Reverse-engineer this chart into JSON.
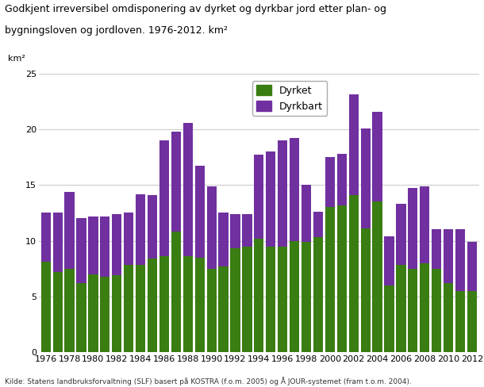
{
  "years": [
    1976,
    1977,
    1978,
    1979,
    1980,
    1981,
    1982,
    1983,
    1984,
    1985,
    1986,
    1987,
    1988,
    1989,
    1990,
    1991,
    1992,
    1993,
    1994,
    1995,
    1996,
    1997,
    1998,
    1999,
    2000,
    2001,
    2002,
    2003,
    2004,
    2005,
    2006,
    2007,
    2008,
    2009,
    2010,
    2011,
    2012
  ],
  "dyrket": [
    8.1,
    7.2,
    7.5,
    6.2,
    7.0,
    6.8,
    6.9,
    7.8,
    7.8,
    8.4,
    8.6,
    10.8,
    8.6,
    8.5,
    7.5,
    7.7,
    9.3,
    9.5,
    10.2,
    9.5,
    9.5,
    10.0,
    9.9,
    10.3,
    13.0,
    13.2,
    14.1,
    11.1,
    13.5,
    6.0,
    7.8,
    7.5,
    8.0,
    7.5,
    6.2,
    5.5,
    5.5
  ],
  "dyrkbart": [
    4.4,
    5.3,
    6.9,
    5.8,
    5.2,
    5.4,
    5.5,
    4.7,
    6.4,
    5.7,
    10.4,
    9.0,
    12.0,
    8.2,
    7.4,
    4.8,
    3.1,
    2.9,
    7.5,
    8.5,
    9.5,
    9.2,
    5.1,
    2.3,
    4.5,
    4.6,
    9.0,
    9.0,
    8.1,
    4.4,
    5.5,
    7.2,
    6.9,
    3.5,
    4.8,
    5.5,
    4.4
  ],
  "dyrket_color": "#3a7d12",
  "dyrkbart_color": "#7030a0",
  "title_line1": "Godkjent irreversibel omdisponering av dyrket og dyrkbar jord etter plan- og",
  "title_line2": "bygningsloven og jordloven. 1976-2012. km²",
  "ylabel": "km²",
  "ylim": [
    0,
    25
  ],
  "yticks": [
    0,
    5,
    10,
    15,
    20,
    25
  ],
  "source": "Kilde: Statens landbruksforvaltning (SLF) basert på KOSTRA (f.o.m. 2005) og Å JOUR-systemet (fram t.o.m. 2004).",
  "legend_dyrket": "Dyrket",
  "legend_dyrkbart": "Dyrkbart",
  "bg_color": "#ffffff",
  "plot_bg_color": "#ffffff",
  "grid_color": "#cccccc"
}
